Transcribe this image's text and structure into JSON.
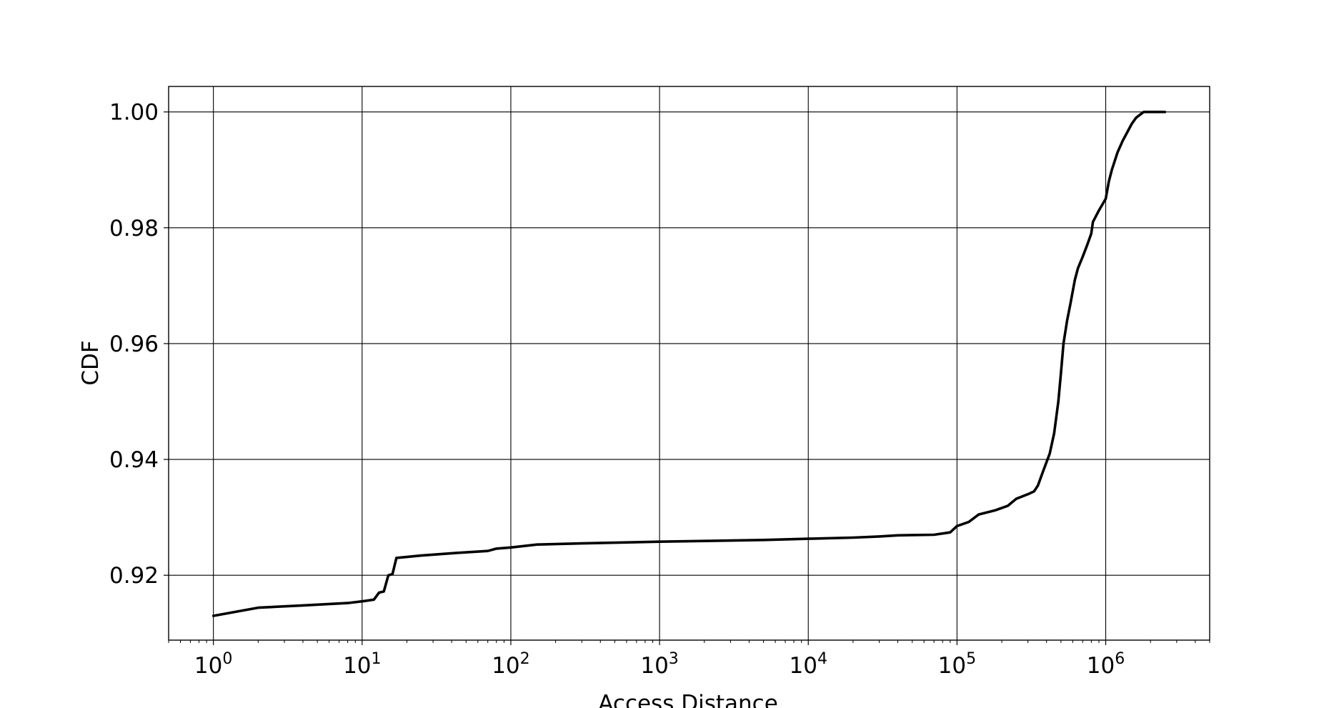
{
  "chart_data": {
    "type": "line",
    "title": "",
    "xlabel": "Access Distance",
    "ylabel": "CDF",
    "x_scale": "log",
    "xlim": [
      0.5,
      5000000
    ],
    "ylim": [
      0.9088,
      1.0044
    ],
    "grid": true,
    "legend": "none",
    "x_ticks": [
      {
        "value": 1,
        "base": "10",
        "exp": "0"
      },
      {
        "value": 10,
        "base": "10",
        "exp": "1"
      },
      {
        "value": 100,
        "base": "10",
        "exp": "2"
      },
      {
        "value": 1000,
        "base": "10",
        "exp": "3"
      },
      {
        "value": 10000,
        "base": "10",
        "exp": "4"
      },
      {
        "value": 100000,
        "base": "10",
        "exp": "5"
      },
      {
        "value": 1000000,
        "base": "10",
        "exp": "6"
      }
    ],
    "y_ticks": [
      {
        "value": 0.92,
        "label": "0.92"
      },
      {
        "value": 0.94,
        "label": "0.94"
      },
      {
        "value": 0.96,
        "label": "0.96"
      },
      {
        "value": 0.98,
        "label": "0.98"
      },
      {
        "value": 1.0,
        "label": "1.00"
      }
    ],
    "series": [
      {
        "color": "#000000",
        "x": [
          1,
          2,
          4,
          8,
          10,
          12,
          13,
          14,
          15,
          16,
          17,
          25,
          40,
          70,
          80,
          100,
          150,
          300,
          1000,
          5000,
          10000,
          20000,
          30000,
          40000,
          70000,
          90000,
          100000,
          120000,
          140000,
          180000,
          220000,
          250000,
          300000,
          330000,
          350000,
          380000,
          420000,
          450000,
          480000,
          500000,
          520000,
          550000,
          580000,
          620000,
          650000,
          700000,
          750000,
          800000,
          820000,
          900000,
          1000000,
          1050000,
          1100000,
          1200000,
          1300000,
          1500000,
          1600000,
          1800000,
          2500000
        ],
        "y": [
          0.913,
          0.9144,
          0.9148,
          0.9152,
          0.9155,
          0.9158,
          0.917,
          0.9172,
          0.92,
          0.9202,
          0.923,
          0.9234,
          0.9238,
          0.9242,
          0.9246,
          0.9248,
          0.9253,
          0.9255,
          0.9258,
          0.9261,
          0.9263,
          0.9265,
          0.9267,
          0.9269,
          0.927,
          0.9274,
          0.9285,
          0.9292,
          0.9305,
          0.9312,
          0.932,
          0.9332,
          0.934,
          0.9345,
          0.9355,
          0.938,
          0.941,
          0.9445,
          0.95,
          0.955,
          0.96,
          0.964,
          0.967,
          0.971,
          0.973,
          0.975,
          0.977,
          0.979,
          0.981,
          0.983,
          0.985,
          0.988,
          0.99,
          0.993,
          0.995,
          0.998,
          0.999,
          1.0,
          1.0
        ]
      }
    ]
  }
}
